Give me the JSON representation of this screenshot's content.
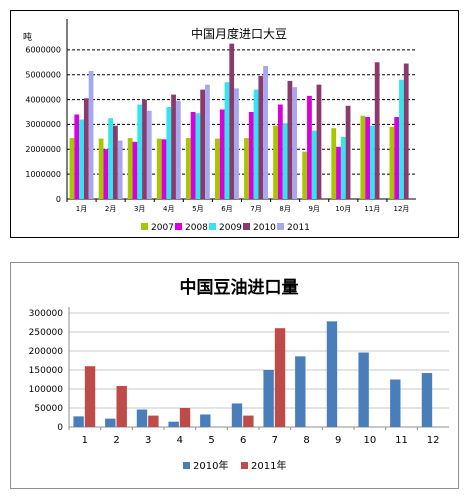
{
  "chart_data": [
    {
      "type": "bar",
      "title": "中国月度进口大豆",
      "ylabel": "吨",
      "xlabel": "",
      "categories": [
        "1月",
        "2月",
        "3月",
        "4月",
        "5月",
        "6月",
        "7月",
        "8月",
        "9月",
        "10月",
        "11月",
        "12月"
      ],
      "ylim": [
        0,
        7000000
      ],
      "yticks": [
        0,
        1000000,
        2000000,
        3000000,
        4000000,
        5000000,
        6000000
      ],
      "ytick_labels": [
        "0",
        "1000000",
        "2000000",
        "3000000",
        "4000000",
        "5000000",
        "6000000"
      ],
      "grid": true,
      "legend_position": "bottom",
      "series": [
        {
          "name": "2007",
          "color": "#a8c500",
          "values": [
            2450000,
            2430000,
            2450000,
            2430000,
            2450000,
            2430000,
            2450000,
            2950000,
            1900000,
            2850000,
            3350000,
            2900000
          ]
        },
        {
          "name": "2008",
          "color": "#d900d9",
          "values": [
            3400000,
            2000000,
            2300000,
            2400000,
            3500000,
            3600000,
            3500000,
            3800000,
            4150000,
            2100000,
            3300000,
            3300000
          ]
        },
        {
          "name": "2009",
          "color": "#33e5ee",
          "values": [
            3200000,
            3250000,
            3800000,
            3700000,
            3450000,
            4700000,
            4400000,
            3050000,
            2750000,
            2500000,
            2950000,
            4800000
          ]
        },
        {
          "name": "2010",
          "color": "#8a3a6c",
          "values": [
            4050000,
            2950000,
            4000000,
            4200000,
            4400000,
            6250000,
            4950000,
            4750000,
            4600000,
            3750000,
            5500000,
            5450000
          ]
        },
        {
          "name": "2011",
          "color": "#a7a7ee",
          "values": [
            5150000,
            2350000,
            3550000,
            3950000,
            4600000,
            4450000,
            5350000,
            4500000,
            null,
            null,
            null,
            null
          ]
        }
      ]
    },
    {
      "type": "bar",
      "title": "中国豆油进口量",
      "xlabel": "",
      "ylabel": "",
      "categories": [
        "1",
        "2",
        "3",
        "4",
        "5",
        "6",
        "7",
        "8",
        "9",
        "10",
        "11",
        "12"
      ],
      "ylim": [
        0,
        300000
      ],
      "yticks": [
        0,
        50000,
        100000,
        150000,
        200000,
        250000,
        300000
      ],
      "ytick_labels": [
        "0",
        "50000",
        "100000",
        "150000",
        "200000",
        "250000",
        "300000"
      ],
      "grid": true,
      "legend_position": "bottom",
      "series": [
        {
          "name": "2010年",
          "color": "#4a7ebb",
          "values": [
            28000,
            22000,
            46000,
            14000,
            33000,
            62000,
            150000,
            186000,
            278000,
            196000,
            125000,
            142000
          ]
        },
        {
          "name": "2011年",
          "color": "#be4b48",
          "values": [
            160000,
            108000,
            30000,
            50000,
            null,
            30000,
            260000,
            null,
            null,
            null,
            null,
            null
          ]
        }
      ]
    }
  ]
}
